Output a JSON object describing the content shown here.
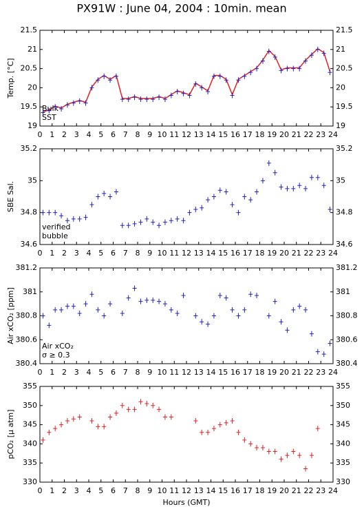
{
  "chart_data": [
    {
      "type": "scatter",
      "title": "PX91W : June 04, 2004 : 10min. mean",
      "ylabel": "Temp. [°C]",
      "x": [
        0.25,
        0.75,
        1.25,
        1.75,
        2.25,
        2.75,
        3.25,
        3.75,
        4.25,
        4.75,
        5.25,
        5.75,
        6.25,
        6.75,
        7.25,
        7.75,
        8.25,
        8.75,
        9.25,
        9.75,
        10.25,
        10.75,
        11.25,
        11.75,
        12.25,
        12.75,
        13.25,
        13.75,
        14.25,
        14.75,
        15.25,
        15.75,
        16.25,
        16.75,
        17.25,
        17.75,
        18.25,
        18.75,
        19.25,
        19.75,
        20.25,
        20.75,
        21.25,
        21.75,
        22.25,
        22.75,
        23.25,
        23.75
      ],
      "series": [
        {
          "name": "Bulk",
          "color": "#e02020",
          "style": "line",
          "values": [
            19.37,
            19.42,
            19.52,
            19.47,
            19.57,
            19.62,
            19.67,
            19.62,
            20.02,
            20.22,
            20.32,
            20.22,
            20.32,
            19.72,
            19.72,
            19.77,
            19.72,
            19.72,
            19.72,
            19.77,
            19.72,
            19.82,
            19.92,
            19.87,
            19.82,
            20.12,
            20.02,
            19.92,
            20.32,
            20.32,
            20.22,
            19.82,
            20.22,
            20.32,
            20.42,
            20.52,
            20.72,
            20.97,
            20.82,
            20.47,
            20.52,
            20.52,
            20.52,
            20.72,
            20.87,
            21.02,
            20.92,
            20.42
          ]
        },
        {
          "name": "SST",
          "color": "#2020c0",
          "style": "cross",
          "values": [
            19.35,
            19.4,
            19.5,
            19.45,
            19.55,
            19.6,
            19.65,
            19.6,
            20.0,
            20.2,
            20.3,
            20.2,
            20.3,
            19.7,
            19.7,
            19.75,
            19.7,
            19.7,
            19.7,
            19.75,
            19.7,
            19.8,
            19.9,
            19.85,
            19.8,
            20.1,
            20.0,
            19.9,
            20.3,
            20.3,
            20.2,
            19.8,
            20.2,
            20.3,
            20.4,
            20.5,
            20.7,
            20.95,
            20.8,
            20.45,
            20.5,
            20.5,
            20.5,
            20.7,
            20.85,
            21.0,
            20.9,
            20.4
          ]
        }
      ],
      "xlim": [
        0,
        24
      ],
      "xticks": [
        0,
        1,
        2,
        3,
        4,
        5,
        6,
        7,
        8,
        9,
        10,
        11,
        12,
        13,
        14,
        15,
        16,
        17,
        18,
        19,
        20,
        21,
        22,
        23,
        24
      ],
      "ylim": [
        19,
        21.5
      ],
      "yticks": [
        19,
        19.5,
        20,
        20.5,
        21,
        21.5
      ]
    },
    {
      "type": "scatter",
      "ylabel": "SBE Sal.",
      "x": [
        0.25,
        0.75,
        1.25,
        1.75,
        2.25,
        2.75,
        3.25,
        3.75,
        4.25,
        4.75,
        5.25,
        5.75,
        6.25,
        6.75,
        7.25,
        7.75,
        8.25,
        8.75,
        9.25,
        9.75,
        10.25,
        10.75,
        11.25,
        11.75,
        12.25,
        12.75,
        13.25,
        13.75,
        14.25,
        14.75,
        15.25,
        15.75,
        16.25,
        16.75,
        17.25,
        17.75,
        18.25,
        18.75,
        19.25,
        19.75,
        20.25,
        20.75,
        21.25,
        21.75,
        22.25,
        22.75,
        23.25,
        23.75
      ],
      "series": [
        {
          "name": "verified",
          "color": "#2020c0",
          "style": "cross",
          "values": [
            34.8,
            34.8,
            34.8,
            34.78,
            34.75,
            34.76,
            34.76,
            34.77,
            34.85,
            34.9,
            34.92,
            34.9,
            34.93,
            34.72,
            34.72,
            34.73,
            34.74,
            34.76,
            34.74,
            34.72,
            34.74,
            34.75,
            34.76,
            34.75,
            34.8,
            34.82,
            34.83,
            34.88,
            34.9,
            34.94,
            34.93,
            34.85,
            34.8,
            34.9,
            34.88,
            34.93,
            35.0,
            35.11,
            35.05,
            34.96,
            34.95,
            34.95,
            34.97,
            34.95,
            35.02,
            35.02,
            34.97,
            34.82
          ]
        }
      ],
      "notes": [
        {
          "text": "bubble",
          "color": "#d020d0"
        }
      ],
      "xlim": [
        0,
        24
      ],
      "xticks": [
        0,
        1,
        2,
        3,
        4,
        5,
        6,
        7,
        8,
        9,
        10,
        11,
        12,
        13,
        14,
        15,
        16,
        17,
        18,
        19,
        20,
        21,
        22,
        23,
        24
      ],
      "ylim": [
        34.6,
        35.2
      ],
      "yticks": [
        34.6,
        34.8,
        35,
        35.2
      ]
    },
    {
      "type": "scatter",
      "ylabel": "Air xCO₂ [ppm]",
      "x": [
        0.25,
        0.75,
        1.25,
        1.75,
        2.25,
        2.75,
        3.25,
        3.75,
        4.25,
        4.75,
        5.25,
        5.75,
        6.25,
        6.75,
        7.25,
        7.75,
        8.25,
        8.75,
        9.25,
        9.75,
        10.25,
        10.75,
        11.25,
        11.75,
        12.25,
        12.75,
        13.25,
        13.75,
        14.25,
        14.75,
        15.25,
        15.75,
        16.25,
        16.75,
        17.25,
        17.75,
        18.25,
        18.75,
        19.25,
        19.75,
        20.25,
        20.75,
        21.25,
        21.75,
        22.25,
        22.75,
        23.25,
        23.75
      ],
      "series": [
        {
          "name": "Air xCO₂",
          "color": "#2020c0",
          "style": "cross",
          "values": [
            380.8,
            380.72,
            380.85,
            380.85,
            380.88,
            380.88,
            380.82,
            380.9,
            380.98,
            380.85,
            380.8,
            380.9,
            null,
            380.82,
            380.95,
            381.03,
            380.92,
            380.93,
            380.93,
            380.92,
            380.9,
            380.85,
            380.82,
            380.97,
            null,
            380.8,
            380.75,
            380.73,
            380.8,
            380.97,
            380.95,
            380.85,
            380.8,
            380.85,
            380.98,
            380.97,
            null,
            380.8,
            380.92,
            380.75,
            380.68,
            380.85,
            380.88,
            380.85,
            380.65,
            380.5,
            380.48,
            380.57
          ]
        }
      ],
      "notes": [
        {
          "text": "σ ≥ 0.3",
          "color": "#d020d0"
        }
      ],
      "xlim": [
        0,
        24
      ],
      "xticks": [
        0,
        1,
        2,
        3,
        4,
        5,
        6,
        7,
        8,
        9,
        10,
        11,
        12,
        13,
        14,
        15,
        16,
        17,
        18,
        19,
        20,
        21,
        22,
        23,
        24
      ],
      "ylim": [
        380.4,
        381.2
      ],
      "yticks": [
        380.4,
        380.6,
        380.8,
        381,
        381.2
      ]
    },
    {
      "type": "scatter",
      "ylabel": "pCO₂ [μ atm]",
      "xlabel": "Hours (GMT)",
      "x": [
        0.25,
        0.75,
        1.25,
        1.75,
        2.25,
        2.75,
        3.25,
        3.75,
        4.25,
        4.75,
        5.25,
        5.75,
        6.25,
        6.75,
        7.25,
        7.75,
        8.25,
        8.75,
        9.25,
        9.75,
        10.25,
        10.75,
        11.25,
        11.75,
        12.25,
        12.75,
        13.25,
        13.75,
        14.25,
        14.75,
        15.25,
        15.75,
        16.25,
        16.75,
        17.25,
        17.75,
        18.25,
        18.75,
        19.25,
        19.75,
        20.25,
        20.75,
        21.25,
        21.75,
        22.25,
        22.75,
        23.25,
        23.75
      ],
      "series": [
        {
          "name": "pCO₂",
          "color": "#e02020",
          "style": "cross",
          "values": [
            341,
            343,
            344,
            345,
            346,
            346.5,
            347,
            null,
            346,
            344.5,
            344.5,
            347,
            348,
            350,
            349,
            349,
            351,
            350.5,
            350,
            349,
            347,
            347,
            null,
            null,
            null,
            346,
            343,
            343,
            344,
            345,
            345.5,
            346,
            343,
            341,
            340,
            339,
            339,
            338,
            338,
            336,
            337,
            338,
            337,
            333.5,
            337,
            344,
            null,
            null
          ]
        }
      ],
      "xlim": [
        0,
        24
      ],
      "xticks": [
        0,
        1,
        2,
        3,
        4,
        5,
        6,
        7,
        8,
        9,
        10,
        11,
        12,
        13,
        14,
        15,
        16,
        17,
        18,
        19,
        20,
        21,
        22,
        23,
        24
      ],
      "ylim": [
        330,
        355
      ],
      "yticks": [
        330,
        335,
        340,
        345,
        350,
        355
      ]
    }
  ]
}
